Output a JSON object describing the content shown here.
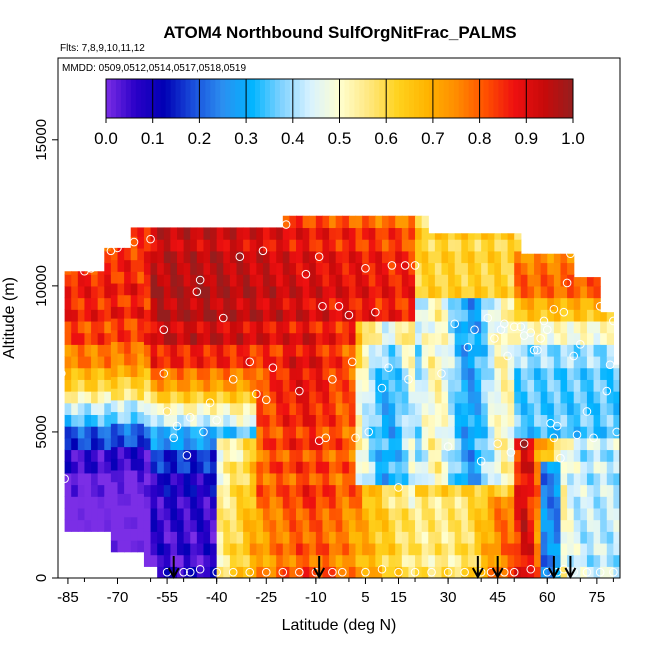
{
  "chart_data": {
    "type": "heatmap",
    "title": "ATOM4 Northbound SulfOrgNitFrac_PALMS",
    "subtitle_flights": "Flts: 7,8,9,10,11,12",
    "subtitle_dates": "MMDD: 0509,0512,0514,0517,0518,0519",
    "xlabel": "Latitude (deg N)",
    "ylabel": "Altitude (m)",
    "xlim": [
      -88,
      82
    ],
    "ylim": [
      0,
      17800
    ],
    "x_ticks": [
      -85,
      -70,
      -55,
      -40,
      -25,
      -10,
      5,
      15,
      30,
      45,
      60,
      75
    ],
    "x_tick_labels": [
      "-85",
      "-70",
      "-55",
      "-40",
      "-25",
      "-10",
      "5",
      "15",
      "30",
      "45",
      "60",
      "75"
    ],
    "y_ticks": [
      0,
      5000,
      10000,
      15000
    ],
    "y_tick_labels": [
      "0",
      "5000",
      "10000",
      "15000"
    ],
    "colorbar": {
      "range": [
        0,
        1
      ],
      "ticks": [
        0.0,
        0.1,
        0.2,
        0.3,
        0.4,
        0.5,
        0.6,
        0.7,
        0.8,
        0.9,
        1.0
      ],
      "tick_labels": [
        "0.0",
        "0.1",
        "0.2",
        "0.3",
        "0.4",
        "0.5",
        "0.6",
        "0.7",
        "0.8",
        "0.9",
        "1.0"
      ],
      "colors": [
        "#7b2ee6",
        "#2b00c8",
        "#0000b4",
        "#1a4fdc",
        "#2b8ff0",
        "#00b4ff",
        "#7fd2ff",
        "#d8f2ff",
        "#ffffd0",
        "#ffe880",
        "#ffd21e",
        "#ffb400",
        "#ff8c00",
        "#ff5000",
        "#ee1010",
        "#c80a0a",
        "#961e1e"
      ]
    },
    "grid": false,
    "arrow_latitudes": [
      -53,
      -9,
      39,
      45,
      62,
      67
    ],
    "sample_points": [
      [
        -86,
        3400
      ],
      [
        -87,
        7000
      ],
      [
        -80,
        10500
      ],
      [
        -78,
        10600
      ],
      [
        -72,
        11200
      ],
      [
        -70,
        11300
      ],
      [
        -65,
        11500
      ],
      [
        -60,
        11600
      ],
      [
        -56,
        8500
      ],
      [
        -56,
        7000
      ],
      [
        -55,
        5700
      ],
      [
        -53,
        4800
      ],
      [
        -52,
        5200
      ],
      [
        -49,
        4200
      ],
      [
        -48,
        5500
      ],
      [
        -46,
        9800
      ],
      [
        -45,
        10200
      ],
      [
        -44,
        5000
      ],
      [
        -42,
        6000
      ],
      [
        -40,
        5400
      ],
      [
        -38,
        8900
      ],
      [
        -35,
        6800
      ],
      [
        -33,
        11000
      ],
      [
        -30,
        7400
      ],
      [
        -28,
        6300
      ],
      [
        -26,
        11200
      ],
      [
        -25,
        6100
      ],
      [
        -23,
        7200
      ],
      [
        -19,
        12100
      ],
      [
        -15,
        6400
      ],
      [
        -13,
        10400
      ],
      [
        -9,
        11000
      ],
      [
        -9,
        4700
      ],
      [
        -8,
        9300
      ],
      [
        -7,
        4800
      ],
      [
        -5,
        6800
      ],
      [
        -3,
        9300
      ],
      [
        0,
        9000
      ],
      [
        1,
        7400
      ],
      [
        2,
        4800
      ],
      [
        5,
        10600
      ],
      [
        6,
        5000
      ],
      [
        8,
        9100
      ],
      [
        10,
        6500
      ],
      [
        12,
        7200
      ],
      [
        13,
        10700
      ],
      [
        15,
        3100
      ],
      [
        17,
        10700
      ],
      [
        18,
        6800
      ],
      [
        20,
        10700
      ],
      [
        28,
        7000
      ],
      [
        30,
        4500
      ],
      [
        32,
        8700
      ],
      [
        36,
        7900
      ],
      [
        38,
        8500
      ],
      [
        40,
        4000
      ],
      [
        42,
        8900
      ],
      [
        44,
        8200
      ],
      [
        45,
        4600
      ],
      [
        46,
        8500
      ],
      [
        47,
        8700
      ],
      [
        48,
        7600
      ],
      [
        49,
        4300
      ],
      [
        50,
        8600
      ],
      [
        52,
        8600
      ],
      [
        53,
        4600
      ],
      [
        53,
        8300
      ],
      [
        55,
        8400
      ],
      [
        56,
        7800
      ],
      [
        57,
        7800
      ],
      [
        58,
        8200
      ],
      [
        59,
        8800
      ],
      [
        60,
        8500
      ],
      [
        61,
        5300
      ],
      [
        62,
        4800
      ],
      [
        62,
        9200
      ],
      [
        63,
        5200
      ],
      [
        64,
        4100
      ],
      [
        65,
        9100
      ],
      [
        66,
        10100
      ],
      [
        67,
        11100
      ],
      [
        68,
        7600
      ],
      [
        69,
        4900
      ],
      [
        70,
        8000
      ],
      [
        72,
        5700
      ],
      [
        74,
        4800
      ],
      [
        76,
        9300
      ],
      [
        78,
        6400
      ],
      [
        79,
        7300
      ],
      [
        80,
        8800
      ],
      [
        81,
        5000
      ],
      [
        -55,
        200
      ],
      [
        -50,
        200
      ],
      [
        -48,
        200
      ],
      [
        -45,
        300
      ],
      [
        -40,
        200
      ],
      [
        -35,
        200
      ],
      [
        -30,
        200
      ],
      [
        -25,
        200
      ],
      [
        -20,
        200
      ],
      [
        -15,
        200
      ],
      [
        -10,
        200
      ],
      [
        -5,
        200
      ],
      [
        -2,
        200
      ],
      [
        5,
        200
      ],
      [
        10,
        300
      ],
      [
        15,
        200
      ],
      [
        20,
        200
      ],
      [
        25,
        200
      ],
      [
        30,
        200
      ],
      [
        35,
        200
      ],
      [
        40,
        200
      ],
      [
        43,
        200
      ],
      [
        47,
        200
      ],
      [
        50,
        200
      ],
      [
        55,
        300
      ],
      [
        60,
        200
      ],
      [
        63,
        200
      ],
      [
        65,
        300
      ],
      [
        68,
        200
      ],
      [
        72,
        200
      ],
      [
        76,
        200
      ],
      [
        80,
        200
      ]
    ]
  }
}
